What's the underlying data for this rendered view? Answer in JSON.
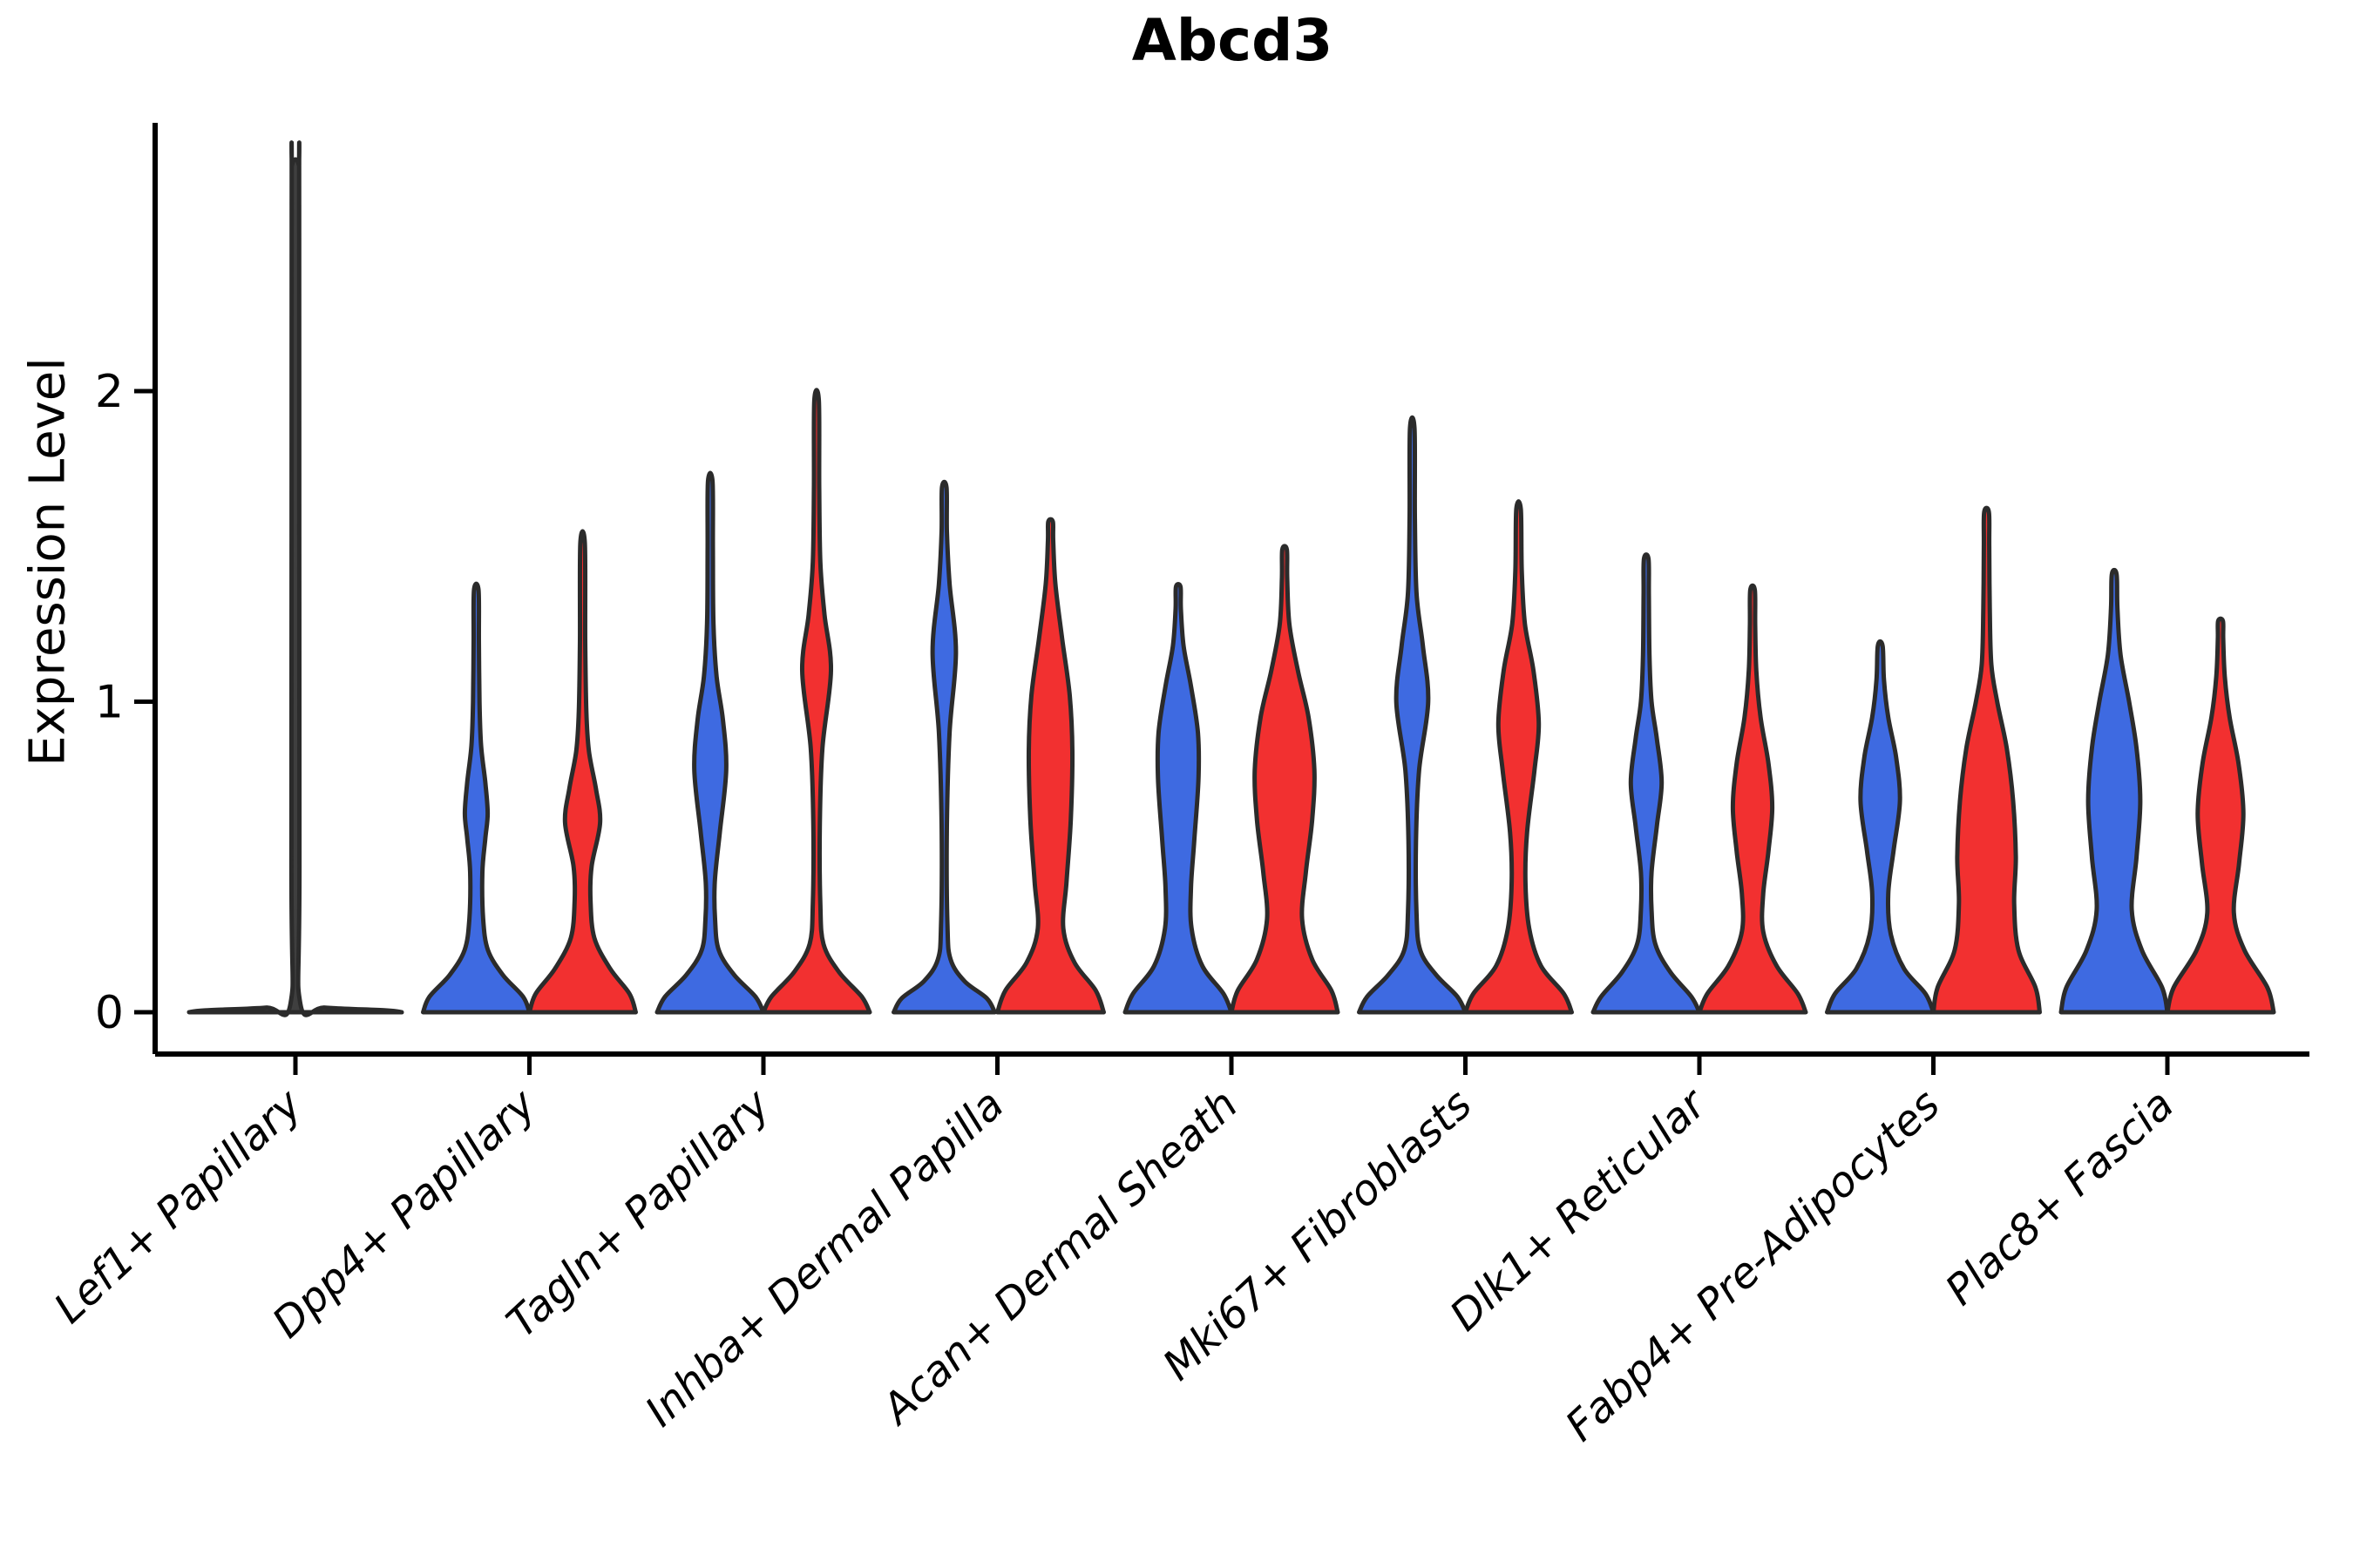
{
  "chart_data": {
    "type": "violin",
    "title": "Abcd3",
    "ylabel": "Expression Level",
    "xlabel": "",
    "yticks": [
      "0",
      "1",
      "2"
    ],
    "ytick_values": [
      0,
      1,
      2
    ],
    "ylim": [
      -0.08,
      2.9
    ],
    "grid": false,
    "legend": "none",
    "x_tick_rotation_deg": 43,
    "categories": [
      "Lef1+ Papillary",
      "Dpp4+ Papillary",
      "Tagln+ Papillary",
      "Inhba+ Dermal Papilla",
      "Acan+ Dermal Sheath",
      "Mki67+ Fibroblasts",
      "Dlk1+ Reticular",
      "Fabp4+ Pre-Adipocytes",
      "Plac8+ Fascia"
    ],
    "groups": [
      {
        "id": "blue",
        "color": "#3E6AE1"
      },
      {
        "id": "red",
        "color": "#F23030"
      }
    ],
    "edge_color": "#2B2B2B",
    "collapsed_violin_color": "#3F3F3F",
    "violins": [
      {
        "category": "Lef1+ Papillary",
        "group": "single-collapsed",
        "peak_value": 2.73,
        "width_scale": 2.0,
        "profile": [
          [
            0,
            1.0
          ],
          [
            0.006,
            0.85
          ],
          [
            0.015,
            0.28
          ],
          [
            0.03,
            0.045
          ],
          [
            0.5,
            0.038
          ],
          [
            2.6,
            0.035
          ],
          [
            2.73,
            0.03
          ]
        ]
      },
      {
        "category": "Dpp4+ Papillary",
        "group": "blue",
        "peak_value": 1.36,
        "width_scale": 1.0,
        "profile": [
          [
            0,
            1.0
          ],
          [
            0.05,
            0.88
          ],
          [
            0.12,
            0.5
          ],
          [
            0.2,
            0.22
          ],
          [
            0.3,
            0.13
          ],
          [
            0.45,
            0.115
          ],
          [
            0.56,
            0.17
          ],
          [
            0.64,
            0.215
          ],
          [
            0.74,
            0.17
          ],
          [
            0.86,
            0.09
          ],
          [
            1.0,
            0.06
          ],
          [
            1.2,
            0.05
          ],
          [
            1.36,
            0.042
          ]
        ]
      },
      {
        "category": "Dpp4+ Papillary",
        "group": "red",
        "peak_value": 1.51,
        "width_scale": 1.0,
        "profile": [
          [
            0,
            1.0
          ],
          [
            0.06,
            0.88
          ],
          [
            0.14,
            0.52
          ],
          [
            0.24,
            0.22
          ],
          [
            0.36,
            0.15
          ],
          [
            0.47,
            0.17
          ],
          [
            0.61,
            0.33
          ],
          [
            0.72,
            0.25
          ],
          [
            0.84,
            0.12
          ],
          [
            0.97,
            0.07
          ],
          [
            1.2,
            0.05
          ],
          [
            1.51,
            0.042
          ]
        ]
      },
      {
        "category": "Tagln+ Papillary",
        "group": "blue",
        "peak_value": 1.71,
        "width_scale": 1.0,
        "profile": [
          [
            0,
            1.0
          ],
          [
            0.05,
            0.85
          ],
          [
            0.12,
            0.45
          ],
          [
            0.2,
            0.16
          ],
          [
            0.3,
            0.09
          ],
          [
            0.42,
            0.085
          ],
          [
            0.58,
            0.18
          ],
          [
            0.78,
            0.3
          ],
          [
            0.94,
            0.24
          ],
          [
            1.08,
            0.12
          ],
          [
            1.25,
            0.06
          ],
          [
            1.5,
            0.05
          ],
          [
            1.71,
            0.042
          ]
        ]
      },
      {
        "category": "Tagln+ Papillary",
        "group": "red",
        "peak_value": 1.97,
        "width_scale": 1.0,
        "profile": [
          [
            0,
            1.0
          ],
          [
            0.05,
            0.85
          ],
          [
            0.13,
            0.42
          ],
          [
            0.22,
            0.13
          ],
          [
            0.35,
            0.07
          ],
          [
            0.6,
            0.06
          ],
          [
            0.85,
            0.11
          ],
          [
            1.1,
            0.27
          ],
          [
            1.28,
            0.15
          ],
          [
            1.45,
            0.07
          ],
          [
            1.7,
            0.05
          ],
          [
            1.97,
            0.042
          ]
        ]
      },
      {
        "category": "Inhba+ Dermal Papilla",
        "group": "blue",
        "peak_value": 1.69,
        "width_scale": 1.0,
        "profile": [
          [
            0,
            0.95
          ],
          [
            0.045,
            0.8
          ],
          [
            0.1,
            0.38
          ],
          [
            0.17,
            0.12
          ],
          [
            0.28,
            0.06
          ],
          [
            0.6,
            0.05
          ],
          [
            0.9,
            0.1
          ],
          [
            1.16,
            0.22
          ],
          [
            1.38,
            0.1
          ],
          [
            1.55,
            0.05
          ],
          [
            1.69,
            0.042
          ]
        ]
      },
      {
        "category": "Inhba+ Dermal Papilla",
        "group": "red",
        "peak_value": 1.58,
        "width_scale": 1.0,
        "profile": [
          [
            0,
            1.0
          ],
          [
            0.07,
            0.85
          ],
          [
            0.16,
            0.45
          ],
          [
            0.27,
            0.24
          ],
          [
            0.42,
            0.3
          ],
          [
            0.62,
            0.38
          ],
          [
            0.84,
            0.41
          ],
          [
            1.02,
            0.36
          ],
          [
            1.2,
            0.22
          ],
          [
            1.38,
            0.09
          ],
          [
            1.52,
            0.05
          ],
          [
            1.58,
            0.042
          ]
        ]
      },
      {
        "category": "Acan+ Dermal Sheath",
        "group": "blue",
        "peak_value": 1.37,
        "width_scale": 1.0,
        "profile": [
          [
            0,
            1.0
          ],
          [
            0.06,
            0.85
          ],
          [
            0.15,
            0.45
          ],
          [
            0.27,
            0.25
          ],
          [
            0.4,
            0.24
          ],
          [
            0.55,
            0.3
          ],
          [
            0.75,
            0.38
          ],
          [
            0.9,
            0.37
          ],
          [
            1.05,
            0.24
          ],
          [
            1.18,
            0.1
          ],
          [
            1.3,
            0.05
          ],
          [
            1.37,
            0.042
          ]
        ]
      },
      {
        "category": "Acan+ Dermal Sheath",
        "group": "red",
        "peak_value": 1.49,
        "width_scale": 1.0,
        "profile": [
          [
            0,
            1.0
          ],
          [
            0.07,
            0.88
          ],
          [
            0.17,
            0.52
          ],
          [
            0.3,
            0.33
          ],
          [
            0.45,
            0.4
          ],
          [
            0.62,
            0.52
          ],
          [
            0.78,
            0.56
          ],
          [
            0.95,
            0.45
          ],
          [
            1.1,
            0.25
          ],
          [
            1.25,
            0.09
          ],
          [
            1.4,
            0.05
          ],
          [
            1.49,
            0.042
          ]
        ]
      },
      {
        "category": "Mki67+ Fibroblasts",
        "group": "blue",
        "peak_value": 1.88,
        "width_scale": 1.0,
        "profile": [
          [
            0,
            1.0
          ],
          [
            0.05,
            0.85
          ],
          [
            0.12,
            0.45
          ],
          [
            0.2,
            0.15
          ],
          [
            0.32,
            0.08
          ],
          [
            0.55,
            0.07
          ],
          [
            0.78,
            0.13
          ],
          [
            1.0,
            0.3
          ],
          [
            1.18,
            0.2
          ],
          [
            1.35,
            0.08
          ],
          [
            1.6,
            0.05
          ],
          [
            1.88,
            0.042
          ]
        ]
      },
      {
        "category": "Mki67+ Fibroblasts",
        "group": "red",
        "peak_value": 1.62,
        "width_scale": 1.0,
        "profile": [
          [
            0,
            1.0
          ],
          [
            0.06,
            0.85
          ],
          [
            0.15,
            0.42
          ],
          [
            0.27,
            0.2
          ],
          [
            0.42,
            0.13
          ],
          [
            0.58,
            0.16
          ],
          [
            0.78,
            0.3
          ],
          [
            0.93,
            0.38
          ],
          [
            1.1,
            0.28
          ],
          [
            1.25,
            0.12
          ],
          [
            1.42,
            0.06
          ],
          [
            1.62,
            0.042
          ]
        ]
      },
      {
        "category": "Dlk1+ Reticular",
        "group": "blue",
        "peak_value": 1.46,
        "width_scale": 1.0,
        "profile": [
          [
            0,
            1.0
          ],
          [
            0.05,
            0.85
          ],
          [
            0.13,
            0.45
          ],
          [
            0.22,
            0.17
          ],
          [
            0.33,
            0.1
          ],
          [
            0.45,
            0.1
          ],
          [
            0.6,
            0.2
          ],
          [
            0.74,
            0.29
          ],
          [
            0.88,
            0.2
          ],
          [
            1.0,
            0.1
          ],
          [
            1.15,
            0.06
          ],
          [
            1.35,
            0.05
          ],
          [
            1.46,
            0.042
          ]
        ]
      },
      {
        "category": "Dlk1+ Reticular",
        "group": "red",
        "peak_value": 1.36,
        "width_scale": 1.0,
        "profile": [
          [
            0,
            1.0
          ],
          [
            0.06,
            0.85
          ],
          [
            0.15,
            0.45
          ],
          [
            0.26,
            0.2
          ],
          [
            0.38,
            0.2
          ],
          [
            0.52,
            0.3
          ],
          [
            0.66,
            0.37
          ],
          [
            0.8,
            0.3
          ],
          [
            0.95,
            0.15
          ],
          [
            1.1,
            0.07
          ],
          [
            1.25,
            0.05
          ],
          [
            1.36,
            0.042
          ]
        ]
      },
      {
        "category": "Fabp4+ Pre-Adipocytes",
        "group": "blue",
        "peak_value": 1.18,
        "width_scale": 1.0,
        "profile": [
          [
            0,
            1.0
          ],
          [
            0.06,
            0.85
          ],
          [
            0.14,
            0.45
          ],
          [
            0.25,
            0.2
          ],
          [
            0.38,
            0.15
          ],
          [
            0.52,
            0.25
          ],
          [
            0.68,
            0.37
          ],
          [
            0.82,
            0.3
          ],
          [
            0.95,
            0.15
          ],
          [
            1.07,
            0.07
          ],
          [
            1.18,
            0.045
          ]
        ]
      },
      {
        "category": "Fabp4+ Pre-Adipocytes",
        "group": "red",
        "peak_value": 1.61,
        "width_scale": 1.0,
        "profile": [
          [
            0,
            1.0
          ],
          [
            0.08,
            0.92
          ],
          [
            0.2,
            0.6
          ],
          [
            0.35,
            0.52
          ],
          [
            0.5,
            0.55
          ],
          [
            0.68,
            0.5
          ],
          [
            0.85,
            0.38
          ],
          [
            1.0,
            0.2
          ],
          [
            1.12,
            0.09
          ],
          [
            1.3,
            0.06
          ],
          [
            1.5,
            0.05
          ],
          [
            1.61,
            0.045
          ]
        ]
      },
      {
        "category": "Plac8+ Fascia",
        "group": "blue",
        "peak_value": 1.41,
        "width_scale": 1.0,
        "profile": [
          [
            0,
            1.0
          ],
          [
            0.08,
            0.9
          ],
          [
            0.2,
            0.52
          ],
          [
            0.33,
            0.33
          ],
          [
            0.5,
            0.42
          ],
          [
            0.68,
            0.49
          ],
          [
            0.85,
            0.42
          ],
          [
            1.0,
            0.28
          ],
          [
            1.15,
            0.12
          ],
          [
            1.3,
            0.06
          ],
          [
            1.41,
            0.045
          ]
        ]
      },
      {
        "category": "Plac8+ Fascia",
        "group": "red",
        "peak_value": 1.26,
        "width_scale": 1.0,
        "profile": [
          [
            0,
            1.0
          ],
          [
            0.08,
            0.88
          ],
          [
            0.2,
            0.45
          ],
          [
            0.32,
            0.25
          ],
          [
            0.48,
            0.35
          ],
          [
            0.64,
            0.43
          ],
          [
            0.8,
            0.34
          ],
          [
            0.95,
            0.17
          ],
          [
            1.08,
            0.08
          ],
          [
            1.2,
            0.05
          ],
          [
            1.26,
            0.045
          ]
        ]
      }
    ]
  }
}
